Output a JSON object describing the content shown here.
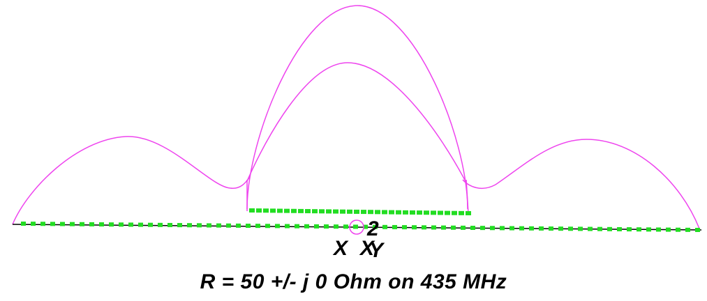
{
  "caption": "R = 50 +/- j 0 Ohm on 435 MHz",
  "markers": {
    "source_label": "2",
    "axis_label_1": "X",
    "axis_label_2": "X",
    "axis_label_3": "Y"
  },
  "colors": {
    "pattern": "#ee44ee",
    "segments": "#22dd22",
    "ground": "#000000",
    "background": "#ffffff"
  }
}
